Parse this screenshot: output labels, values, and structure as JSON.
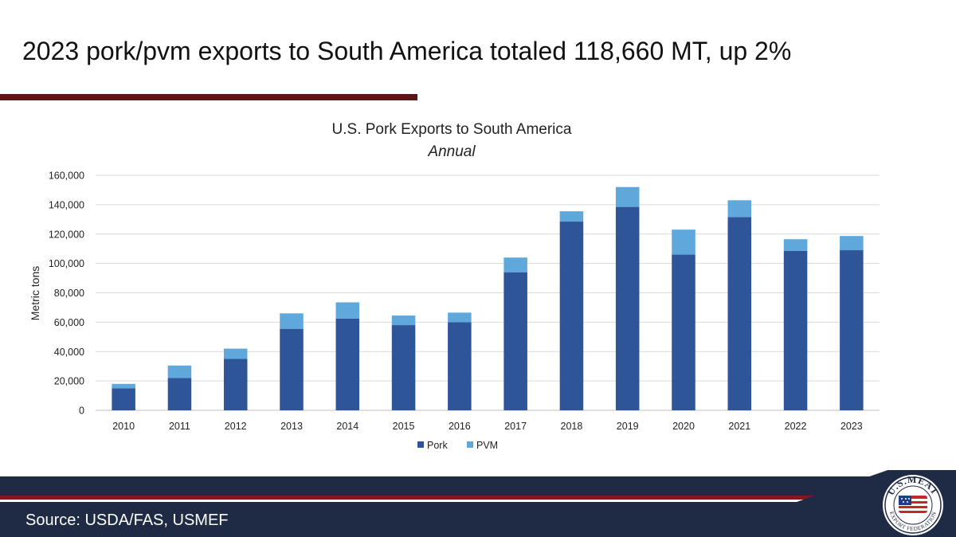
{
  "slide": {
    "title": "2023 pork/pvm exports to South America totaled 118,660 MT, up 2%",
    "source": "Source: USDA/FAS, USMEF"
  },
  "logo": {
    "top_text": "U.S.MEAT",
    "bottom_text": "EXPORT FEDERATION"
  },
  "colors": {
    "title_rule": "#5a1616",
    "footer_navy": "#1f2a44",
    "footer_red": "#7d1a1a",
    "pork": "#2e5597",
    "pvm": "#5fa8dc",
    "grid": "#d9d9d9"
  },
  "chart_data": {
    "type": "bar",
    "stacked": true,
    "title": "U.S. Pork Exports to South America",
    "subtitle": "Annual",
    "xlabel": "",
    "ylabel": "Metric tons",
    "ylim": [
      0,
      160000
    ],
    "yticks": [
      0,
      20000,
      40000,
      60000,
      80000,
      100000,
      120000,
      140000,
      160000
    ],
    "ytick_labels": [
      "0",
      "20,000",
      "40,000",
      "60,000",
      "80,000",
      "100,000",
      "120,000",
      "140,000",
      "160,000"
    ],
    "categories": [
      "2010",
      "2011",
      "2012",
      "2013",
      "2014",
      "2015",
      "2016",
      "2017",
      "2018",
      "2019",
      "2020",
      "2021",
      "2022",
      "2023"
    ],
    "series": [
      {
        "name": "Pork",
        "values": [
          15000,
          22000,
          35000,
          55500,
          62500,
          58000,
          60000,
          94000,
          128500,
          138500,
          106000,
          131500,
          108500,
          109000
        ]
      },
      {
        "name": "PVM",
        "values": [
          3000,
          8500,
          7000,
          10500,
          11000,
          6500,
          6500,
          10000,
          7000,
          13500,
          17000,
          11500,
          8000,
          9660
        ]
      }
    ],
    "grid": true,
    "legend_position": "bottom-center"
  }
}
